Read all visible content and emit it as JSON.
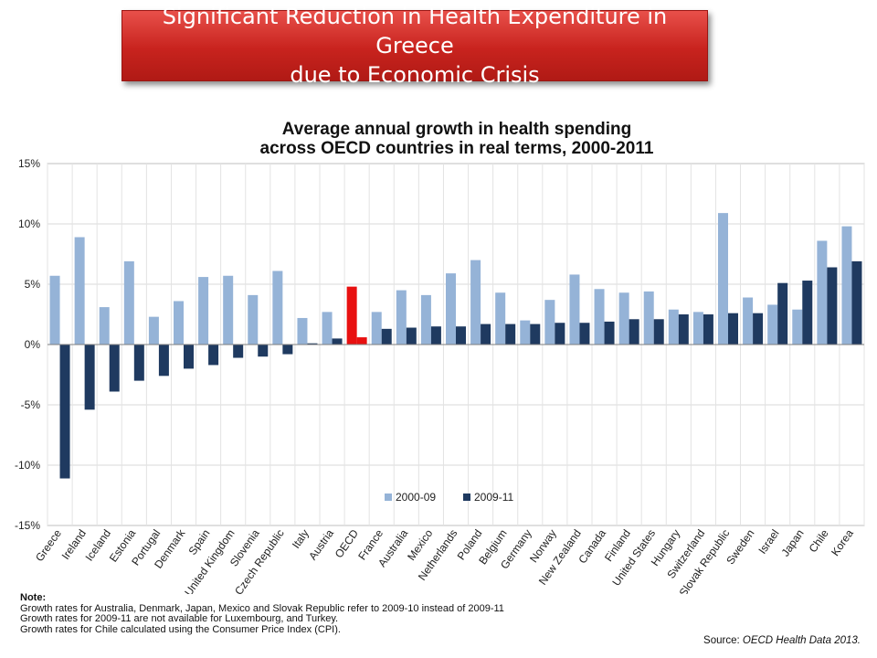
{
  "banner": {
    "title": "Significant Reduction in Health Expenditure in Greece\ndue to Economic Crisis"
  },
  "colors": {
    "series1": "#95b3d7",
    "series2": "#1f3a60",
    "highlight": "#e81010",
    "banner": "#c8231e"
  },
  "chart_data": {
    "type": "bar",
    "title": "Average annual growth in health spending\nacross OECD countries in real terms, 2000-2011",
    "categories": [
      "Greece",
      "Ireland",
      "Iceland",
      "Estonia",
      "Portugal",
      "Denmark",
      "Spain",
      "United Kingdom",
      "Slovenia",
      "Czech Republic",
      "Italy",
      "Austria",
      "OECD",
      "France",
      "Australia",
      "Mexico",
      "Netherlands",
      "Poland",
      "Belgium",
      "Germany",
      "Norway",
      "New Zealand",
      "Canada",
      "Finland",
      "United States",
      "Hungary",
      "Switzerland",
      "Slovak Republic",
      "Sweden",
      "Israel",
      "Japan",
      "Chile",
      "Korea"
    ],
    "series": [
      {
        "name": "2000-09",
        "values": [
          5.7,
          8.9,
          3.1,
          6.9,
          2.3,
          3.6,
          5.6,
          5.7,
          4.1,
          6.1,
          2.2,
          2.7,
          4.8,
          2.7,
          4.5,
          4.1,
          5.9,
          7.0,
          4.3,
          2.0,
          3.7,
          5.8,
          4.6,
          4.3,
          4.4,
          2.9,
          2.7,
          10.9,
          3.9,
          3.3,
          2.9,
          8.6,
          9.8
        ]
      },
      {
        "name": "2009-11",
        "values": [
          -11.1,
          -5.4,
          -3.9,
          -3.0,
          -2.6,
          -2.0,
          -1.7,
          -1.1,
          -1.0,
          -0.8,
          0.1,
          0.5,
          0.6,
          1.3,
          1.4,
          1.5,
          1.5,
          1.7,
          1.7,
          1.7,
          1.8,
          1.8,
          1.9,
          2.1,
          2.1,
          2.5,
          2.5,
          2.6,
          2.6,
          5.1,
          5.3,
          6.4,
          6.9
        ]
      }
    ],
    "highlight_category": "OECD",
    "ylim": [
      -15,
      15
    ],
    "yticks": [
      "-15%",
      "-10%",
      "-5%",
      "0%",
      "5%",
      "10%",
      "15%"
    ],
    "grid": true,
    "legend": "bottom-center"
  },
  "notes": {
    "heading": "Note:",
    "lines": [
      "Growth rates for Australia, Denmark, Japan, Mexico and Slovak Republic refer to 2009-10 instead of 2009-11",
      "Growth rates for 2009-11 are not available for Luxembourg, and Turkey.",
      "Growth rates for Chile calculated using the Consumer Price Index (CPI)."
    ]
  },
  "source": {
    "label": "Source:",
    "text": "OECD Health Data 2013."
  }
}
